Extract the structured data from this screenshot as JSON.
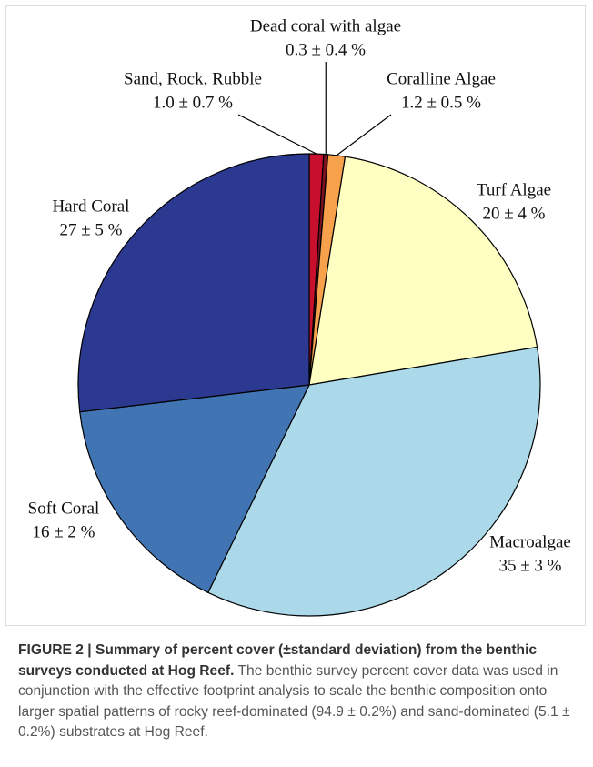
{
  "chart_data": {
    "type": "pie",
    "categories": [
      "Sand, Rock, Rubble",
      "Dead coral with algae",
      "Coralline Algae",
      "Turf Algae",
      "Macroalgae",
      "Soft Coral",
      "Hard Coral"
    ],
    "values": [
      1.0,
      0.3,
      1.2,
      20,
      35,
      16,
      27
    ],
    "value_labels": [
      "1.0 ± 0.7 %",
      "0.3 ± 0.4 %",
      "1.2 ± 0.5 %",
      "20 ± 4 %",
      "35 ± 3 %",
      "16 ± 2 %",
      "27 ± 5 %"
    ],
    "colors": [
      "#c8102e",
      "#7a1020",
      "#f7a14d",
      "#ffffc2",
      "#abd9e9",
      "#4174b3",
      "#2c3990"
    ]
  },
  "caption": {
    "label": "FIGURE 2 | Summary of percent cover (±standard deviation) from the benthic surveys conducted at Hog Reef.",
    "text": "The benthic survey percent cover data was used in conjunction with the effective footprint analysis to scale the benthic composition onto larger spatial patterns of rocky reef-dominated (94.9 ± 0.2%) and sand-dominated (5.1 ± 0.2%) substrates at Hog Reef."
  }
}
